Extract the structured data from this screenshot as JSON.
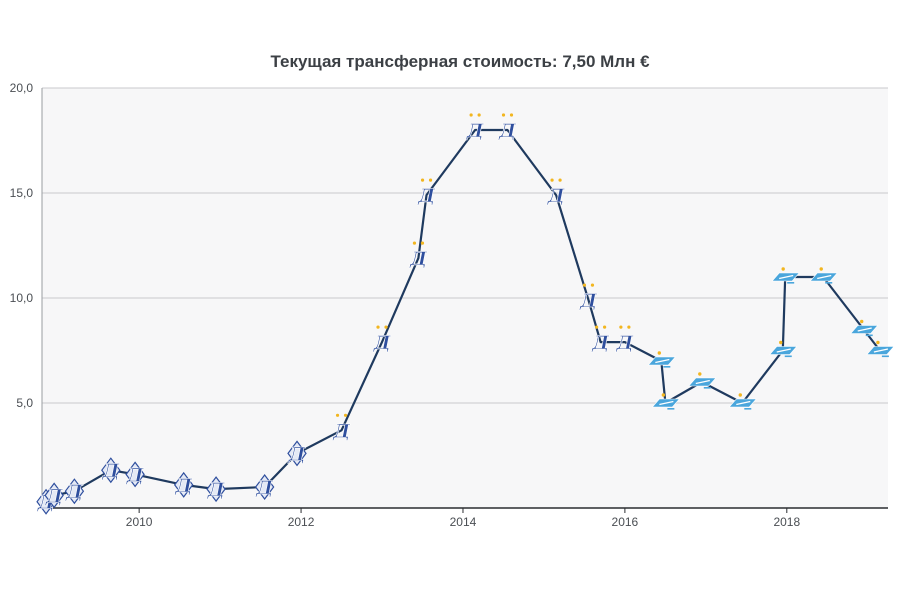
{
  "chart_data": {
    "type": "line",
    "title": "Текущая трансферная стоимость: 7,50 Млн €",
    "xlabel": "",
    "ylabel": "",
    "xlim": [
      2008.8,
      2019.25
    ],
    "ylim": [
      0,
      20
    ],
    "grid": true,
    "yticks": [
      {
        "value": 5,
        "label": "5,0"
      },
      {
        "value": 10,
        "label": "10,0"
      },
      {
        "value": 15,
        "label": "15,0"
      },
      {
        "value": 20,
        "label": "20,0"
      }
    ],
    "xticks": [
      {
        "value": 2010,
        "label": "2010"
      },
      {
        "value": 2012,
        "label": "2012"
      },
      {
        "value": 2014,
        "label": "2014"
      },
      {
        "value": 2016,
        "label": "2016"
      },
      {
        "value": 2018,
        "label": "2018"
      }
    ],
    "colors": {
      "line": "#1f3a5f",
      "plot_bg": "#f7f7f8",
      "grid": "#c8cacd",
      "dynamo": "#2f4f9e",
      "zenit": "#4aa6dc",
      "star": "#f2b620"
    },
    "series": [
      {
        "points": [
          {
            "x": 2008.85,
            "y": 0.3,
            "club": "dynamo-logo"
          },
          {
            "x": 2008.95,
            "y": 0.6,
            "club": "dynamo-logo"
          },
          {
            "x": 2009.2,
            "y": 0.8,
            "club": "dynamo-logo"
          },
          {
            "x": 2009.65,
            "y": 1.8,
            "club": "dynamo-logo"
          },
          {
            "x": 2009.95,
            "y": 1.6,
            "club": "dynamo-logo"
          },
          {
            "x": 2010.55,
            "y": 1.1,
            "club": "dynamo-logo"
          },
          {
            "x": 2010.95,
            "y": 0.9,
            "club": "dynamo-logo"
          },
          {
            "x": 2011.55,
            "y": 1.0,
            "club": "dynamo-logo"
          },
          {
            "x": 2011.95,
            "y": 2.6,
            "club": "dynamo-logo"
          },
          {
            "x": 2012.5,
            "y": 3.7,
            "club": "dynamo-logo"
          },
          {
            "x": 2013.0,
            "y": 7.9,
            "club": "dynamo-logo"
          },
          {
            "x": 2013.45,
            "y": 11.9,
            "club": "dynamo-logo"
          },
          {
            "x": 2013.55,
            "y": 14.9,
            "club": "dynamo-logo"
          },
          {
            "x": 2014.15,
            "y": 18.0,
            "club": "dynamo-logo"
          },
          {
            "x": 2014.55,
            "y": 18.0,
            "club": "dynamo-logo"
          },
          {
            "x": 2015.15,
            "y": 14.9,
            "club": "dynamo-logo"
          },
          {
            "x": 2015.55,
            "y": 9.9,
            "club": "dynamo-logo"
          },
          {
            "x": 2015.7,
            "y": 7.9,
            "club": "dynamo-logo"
          },
          {
            "x": 2016.0,
            "y": 7.9,
            "club": "dynamo-logo"
          },
          {
            "x": 2016.45,
            "y": 7.0,
            "club": "zenit-logo"
          },
          {
            "x": 2016.5,
            "y": 5.0,
            "club": "zenit-logo"
          },
          {
            "x": 2016.95,
            "y": 6.0,
            "club": "zenit-logo"
          },
          {
            "x": 2017.45,
            "y": 5.0,
            "club": "zenit-logo"
          },
          {
            "x": 2017.95,
            "y": 7.5,
            "club": "zenit-logo"
          },
          {
            "x": 2017.98,
            "y": 11.0,
            "club": "zenit-logo"
          },
          {
            "x": 2018.45,
            "y": 11.0,
            "club": "zenit-logo"
          },
          {
            "x": 2018.95,
            "y": 8.5,
            "club": "zenit-logo"
          },
          {
            "x": 2019.15,
            "y": 7.5,
            "club": "zenit-logo"
          }
        ]
      }
    ]
  }
}
